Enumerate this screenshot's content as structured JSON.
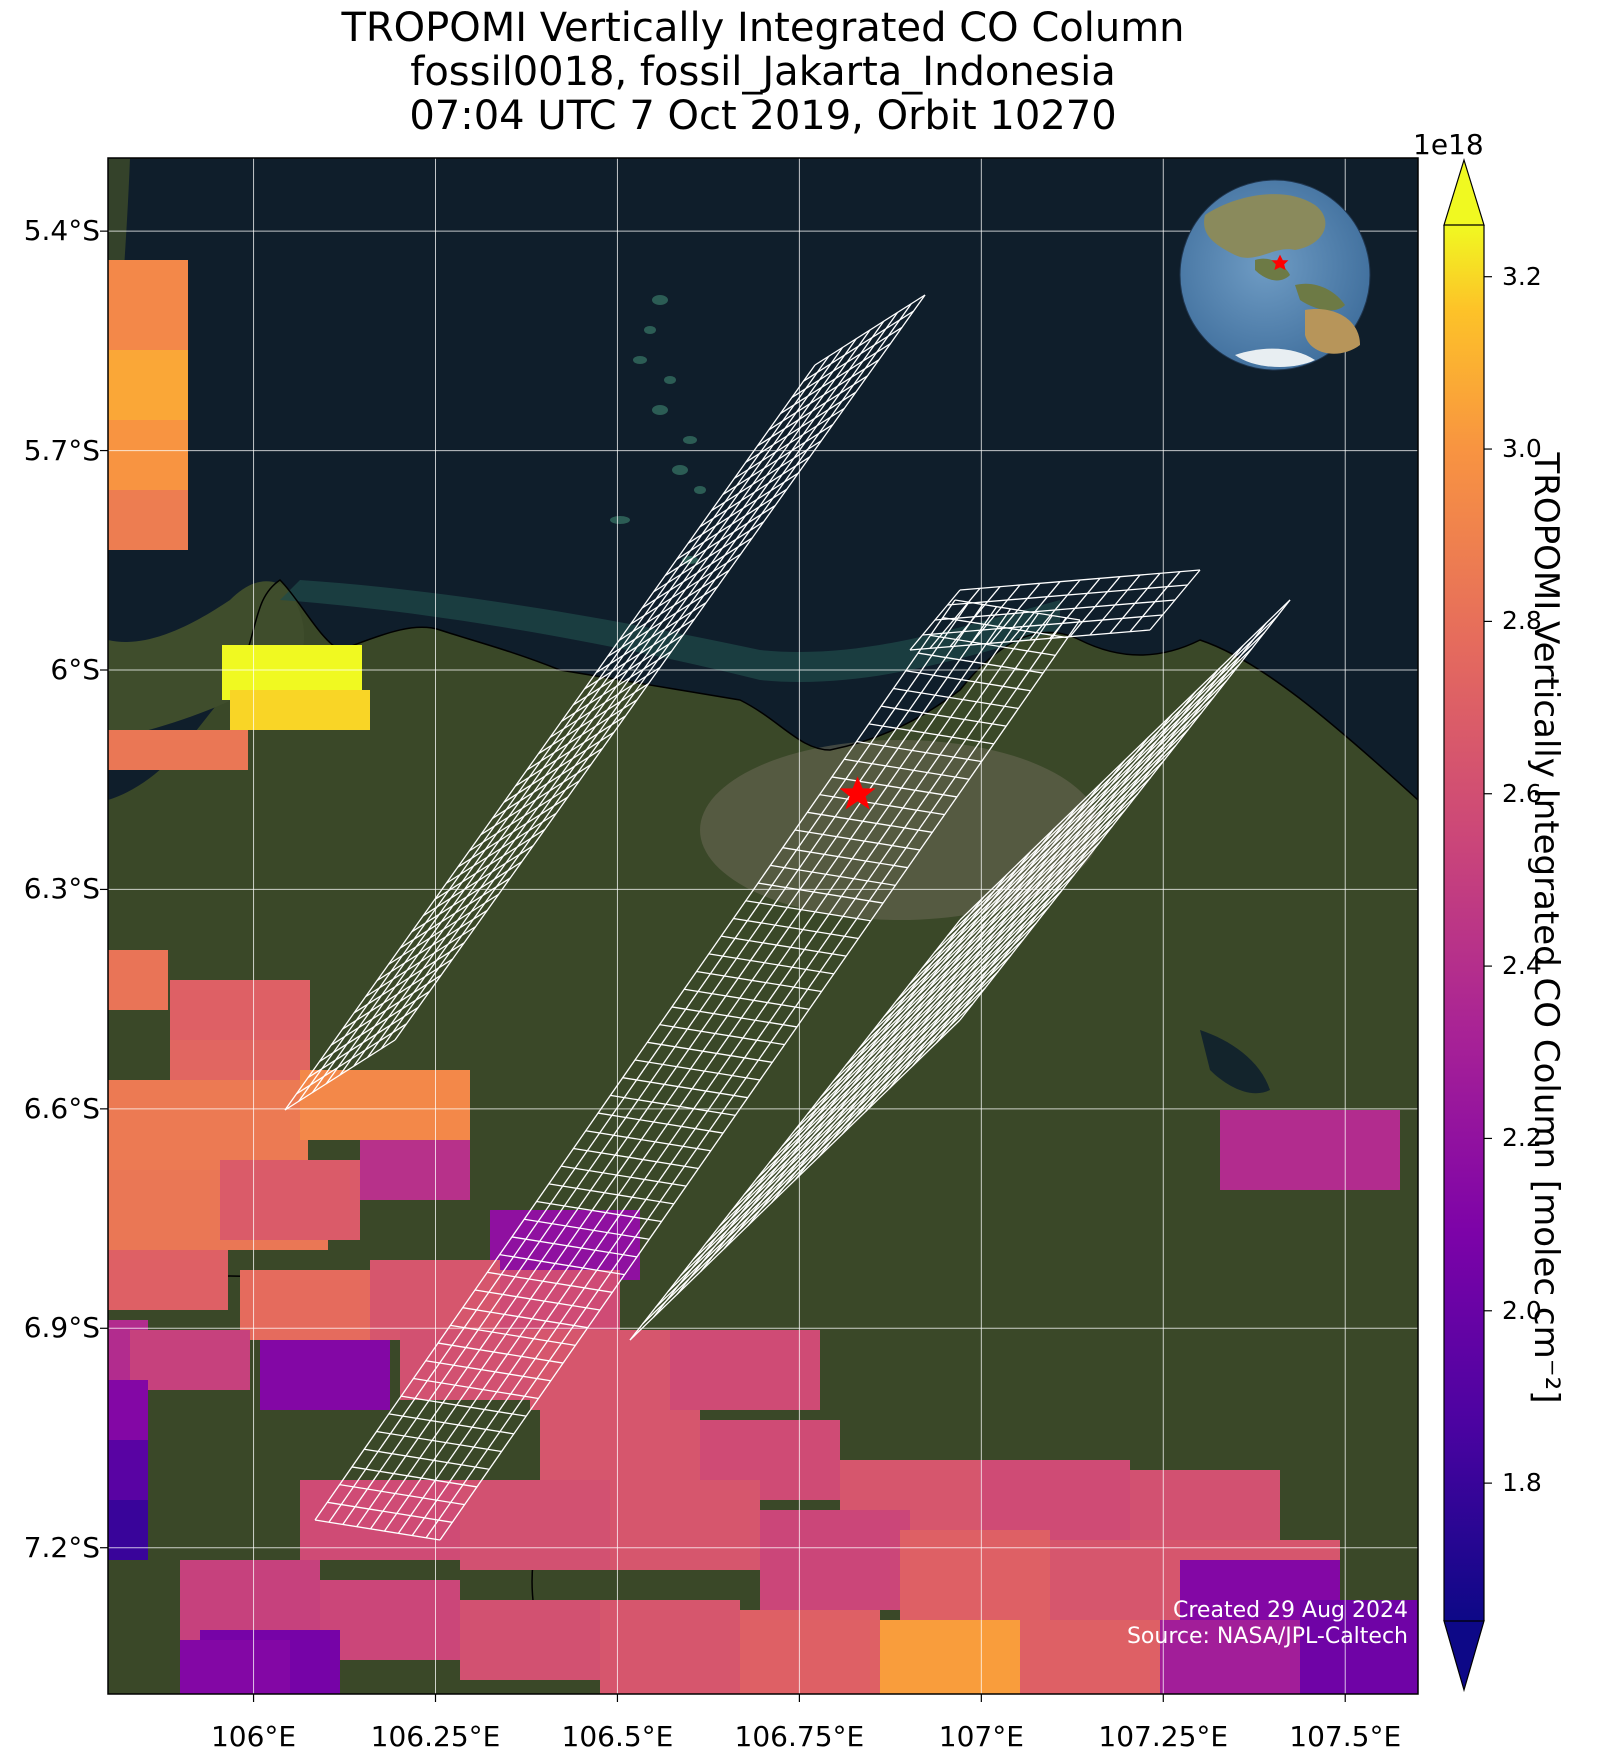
{
  "title": {
    "line1": "TROPOMI Vertically Integrated CO Column",
    "line2": "fossil0018, fossil_Jakarta_Indonesia",
    "line3": "07:04 UTC 7 Oct 2019, Orbit 10270"
  },
  "map": {
    "lon_range": [
      105.8,
      107.6
    ],
    "lat_range": [
      -7.4,
      -5.3
    ],
    "ocean_color": "#0f1e2b",
    "land_color": "#3b4a2a",
    "target_marker": {
      "lon": 106.83,
      "lat": -6.17,
      "symbol": "red-star",
      "color": "#ff0000"
    },
    "inset_globe": "globe-icon"
  },
  "axes": {
    "lat_ticks": [
      "5.4°S",
      "5.7°S",
      "6°S",
      "6.3°S",
      "6.6°S",
      "6.9°S",
      "7.2°S"
    ],
    "lat_values": [
      -5.4,
      -5.7,
      -6.0,
      -6.3,
      -6.6,
      -6.9,
      -7.2
    ],
    "lon_ticks": [
      "106°E",
      "106.25°E",
      "106.5°E",
      "106.75°E",
      "107°E",
      "107.25°E",
      "107.5°E"
    ],
    "lon_values": [
      106.0,
      106.25,
      106.5,
      106.75,
      107.0,
      107.25,
      107.5
    ],
    "grid": true
  },
  "colorbar": {
    "exponent": "1e18",
    "ticks": [
      "1.8",
      "2.0",
      "2.2",
      "2.4",
      "2.6",
      "2.8",
      "3.0",
      "3.2"
    ],
    "tick_values": [
      1.8,
      2.0,
      2.2,
      2.4,
      2.6,
      2.8,
      3.0,
      3.2
    ],
    "range": [
      1.64,
      3.26
    ],
    "extend": "both",
    "colormap": "plasma",
    "label": "TROPOMI Vertically Integrated CO Column [molec cm⁻²]"
  },
  "credit": {
    "line1": "Created 29 Aug 2024",
    "line2": "Source: NASA/JPL-Caltech"
  }
}
